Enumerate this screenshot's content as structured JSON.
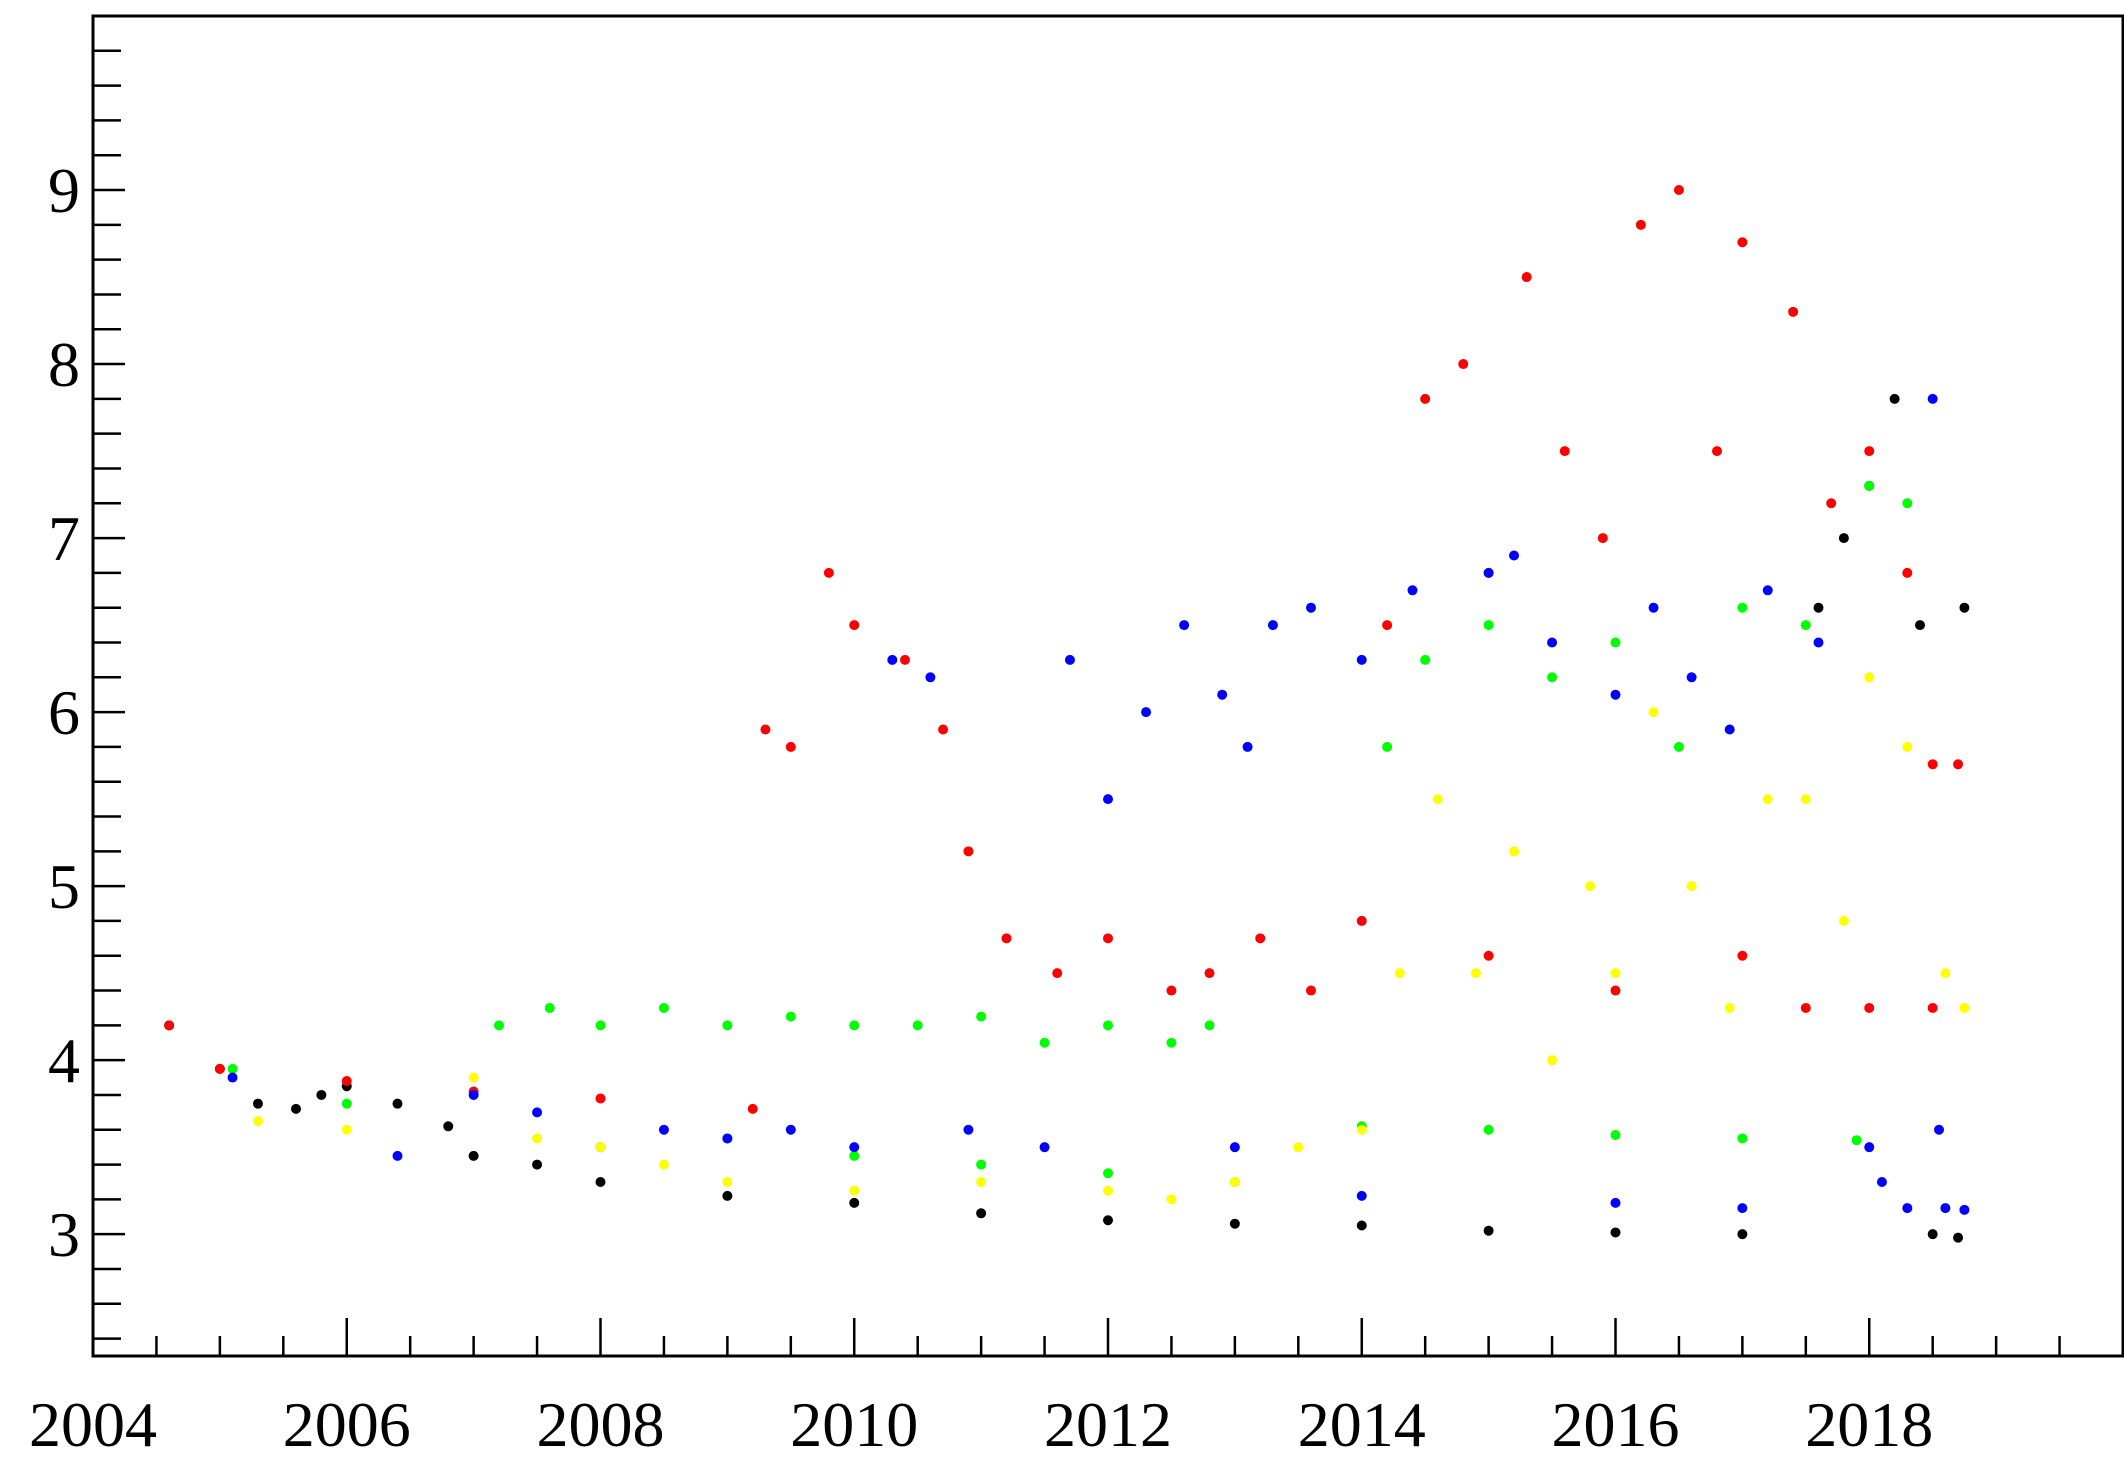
{
  "chart_data": {
    "type": "scatter",
    "title": "",
    "xlabel": "",
    "ylabel": "",
    "xlim": [
      2004,
      2020
    ],
    "ylim": [
      2.3,
      10.0
    ],
    "x_ticks": [
      "2004",
      "2006",
      "2008",
      "2010",
      "2012",
      "2014",
      "2016",
      "2018"
    ],
    "y_ticks": [
      "3",
      "4",
      "5",
      "6",
      "7",
      "8",
      "9"
    ],
    "series": [
      {
        "color": "#000000",
        "values": [
          [
            2004.6,
            4.2
          ],
          [
            2005.0,
            3.95
          ],
          [
            2005.3,
            3.75
          ],
          [
            2005.6,
            3.72
          ],
          [
            2005.8,
            3.8
          ],
          [
            2006.0,
            3.85
          ],
          [
            2006.4,
            3.75
          ],
          [
            2006.8,
            3.62
          ],
          [
            2007.0,
            3.45
          ],
          [
            2007.5,
            3.4
          ],
          [
            2008.0,
            3.3
          ],
          [
            2009.0,
            3.22
          ],
          [
            2010.0,
            3.18
          ],
          [
            2011.0,
            3.12
          ],
          [
            2012.0,
            3.08
          ],
          [
            2013.0,
            3.06
          ],
          [
            2014.0,
            3.05
          ],
          [
            2015.0,
            3.02
          ],
          [
            2016.0,
            3.01
          ],
          [
            2017.0,
            3.0
          ],
          [
            2017.6,
            6.6
          ],
          [
            2017.8,
            7.0
          ],
          [
            2018.0,
            7.3
          ],
          [
            2018.2,
            7.8
          ],
          [
            2018.4,
            6.5
          ],
          [
            2018.5,
            3.0
          ],
          [
            2018.7,
            2.98
          ],
          [
            2018.75,
            6.6
          ]
        ]
      },
      {
        "color": "#ff0000",
        "values": [
          [
            2004.6,
            4.2
          ],
          [
            2005.0,
            3.95
          ],
          [
            2006.0,
            3.88
          ],
          [
            2007.0,
            3.82
          ],
          [
            2008.0,
            3.78
          ],
          [
            2009.2,
            3.72
          ],
          [
            2009.3,
            5.9
          ],
          [
            2009.5,
            5.8
          ],
          [
            2009.8,
            6.8
          ],
          [
            2010.0,
            6.5
          ],
          [
            2010.4,
            6.3
          ],
          [
            2010.7,
            5.9
          ],
          [
            2010.9,
            5.2
          ],
          [
            2011.2,
            4.7
          ],
          [
            2011.6,
            4.5
          ],
          [
            2012.0,
            4.7
          ],
          [
            2012.5,
            4.4
          ],
          [
            2012.8,
            4.5
          ],
          [
            2013.2,
            4.7
          ],
          [
            2013.6,
            4.4
          ],
          [
            2014.0,
            4.8
          ],
          [
            2014.2,
            6.5
          ],
          [
            2014.5,
            7.8
          ],
          [
            2014.8,
            8.0
          ],
          [
            2015.0,
            6.8
          ],
          [
            2015.3,
            8.5
          ],
          [
            2015.6,
            7.5
          ],
          [
            2015.9,
            7.0
          ],
          [
            2016.2,
            8.8
          ],
          [
            2016.5,
            9.0
          ],
          [
            2016.8,
            7.5
          ],
          [
            2017.0,
            8.7
          ],
          [
            2017.4,
            8.3
          ],
          [
            2017.7,
            7.2
          ],
          [
            2018.0,
            7.5
          ],
          [
            2018.3,
            6.8
          ],
          [
            2018.5,
            5.7
          ],
          [
            2018.7,
            5.7
          ],
          [
            2015.0,
            4.6
          ],
          [
            2016.0,
            4.4
          ],
          [
            2017.0,
            4.6
          ],
          [
            2017.5,
            4.3
          ],
          [
            2018.0,
            4.3
          ],
          [
            2018.5,
            4.3
          ]
        ]
      },
      {
        "color": "#00ff00",
        "values": [
          [
            2005.1,
            3.95
          ],
          [
            2006.0,
            3.75
          ],
          [
            2007.2,
            4.2
          ],
          [
            2007.6,
            4.3
          ],
          [
            2008.0,
            4.2
          ],
          [
            2008.5,
            4.3
          ],
          [
            2009.0,
            4.2
          ],
          [
            2009.5,
            4.25
          ],
          [
            2010.0,
            4.2
          ],
          [
            2010.5,
            4.2
          ],
          [
            2011.0,
            4.25
          ],
          [
            2011.5,
            4.1
          ],
          [
            2012.0,
            4.2
          ],
          [
            2012.5,
            4.1
          ],
          [
            2012.8,
            4.2
          ],
          [
            2014.0,
            3.62
          ],
          [
            2015.0,
            3.6
          ],
          [
            2016.0,
            3.57
          ],
          [
            2017.0,
            3.55
          ],
          [
            2017.9,
            3.54
          ],
          [
            2014.2,
            5.8
          ],
          [
            2014.5,
            6.3
          ],
          [
            2015.0,
            6.5
          ],
          [
            2015.5,
            6.2
          ],
          [
            2016.0,
            6.4
          ],
          [
            2016.5,
            5.8
          ],
          [
            2017.0,
            6.6
          ],
          [
            2017.5,
            6.5
          ],
          [
            2018.0,
            7.3
          ],
          [
            2018.3,
            7.2
          ],
          [
            2009.0,
            3.55
          ],
          [
            2010.0,
            3.45
          ],
          [
            2011.0,
            3.4
          ],
          [
            2012.0,
            3.35
          ],
          [
            2013.0,
            3.3
          ]
        ]
      },
      {
        "color": "#0000ff",
        "values": [
          [
            2005.1,
            3.9
          ],
          [
            2006.4,
            3.45
          ],
          [
            2007.0,
            3.8
          ],
          [
            2007.5,
            3.7
          ],
          [
            2008.0,
            3.5
          ],
          [
            2008.5,
            3.6
          ],
          [
            2009.0,
            3.55
          ],
          [
            2009.5,
            3.6
          ],
          [
            2010.0,
            3.5
          ],
          [
            2010.3,
            6.3
          ],
          [
            2010.6,
            6.2
          ],
          [
            2010.9,
            3.6
          ],
          [
            2011.5,
            3.5
          ],
          [
            2011.7,
            6.3
          ],
          [
            2012.0,
            5.5
          ],
          [
            2012.3,
            6.0
          ],
          [
            2012.6,
            6.5
          ],
          [
            2012.9,
            6.1
          ],
          [
            2013.1,
            5.8
          ],
          [
            2013.3,
            6.5
          ],
          [
            2013.6,
            6.6
          ],
          [
            2014.0,
            6.3
          ],
          [
            2014.4,
            6.7
          ],
          [
            2015.0,
            6.8
          ],
          [
            2015.2,
            6.9
          ],
          [
            2015.5,
            6.4
          ],
          [
            2016.0,
            6.1
          ],
          [
            2016.3,
            6.6
          ],
          [
            2016.6,
            6.2
          ],
          [
            2016.9,
            5.9
          ],
          [
            2017.2,
            6.7
          ],
          [
            2017.6,
            6.4
          ],
          [
            2018.0,
            3.5
          ],
          [
            2018.1,
            3.3
          ],
          [
            2018.3,
            3.15
          ],
          [
            2018.6,
            3.15
          ],
          [
            2018.75,
            3.14
          ],
          [
            2013.0,
            3.5
          ],
          [
            2014.0,
            3.22
          ],
          [
            2016.0,
            3.18
          ],
          [
            2017.0,
            3.15
          ],
          [
            2018.5,
            7.8
          ],
          [
            2018.55,
            3.6
          ]
        ]
      },
      {
        "color": "#ffff00",
        "values": [
          [
            2005.3,
            3.65
          ],
          [
            2006.0,
            3.6
          ],
          [
            2007.0,
            3.9
          ],
          [
            2007.5,
            3.55
          ],
          [
            2008.0,
            3.5
          ],
          [
            2008.5,
            3.4
          ],
          [
            2009.0,
            3.3
          ],
          [
            2010.0,
            3.25
          ],
          [
            2011.0,
            3.3
          ],
          [
            2012.0,
            3.25
          ],
          [
            2012.5,
            3.2
          ],
          [
            2013.0,
            3.3
          ],
          [
            2013.5,
            3.5
          ],
          [
            2014.0,
            3.6
          ],
          [
            2014.3,
            4.5
          ],
          [
            2014.6,
            5.5
          ],
          [
            2014.9,
            4.5
          ],
          [
            2015.2,
            5.2
          ],
          [
            2015.5,
            4.0
          ],
          [
            2015.8,
            5.0
          ],
          [
            2016.0,
            4.5
          ],
          [
            2016.3,
            6.0
          ],
          [
            2016.6,
            5.0
          ],
          [
            2016.9,
            4.3
          ],
          [
            2017.2,
            5.5
          ],
          [
            2017.5,
            5.5
          ],
          [
            2017.8,
            4.8
          ],
          [
            2018.0,
            6.2
          ],
          [
            2018.3,
            5.8
          ],
          [
            2018.6,
            4.5
          ],
          [
            2018.75,
            4.3
          ]
        ]
      }
    ]
  }
}
